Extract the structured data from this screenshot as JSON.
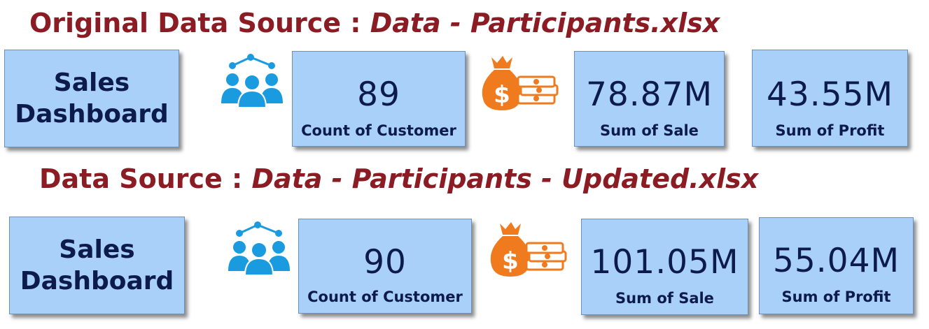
{
  "sections": [
    {
      "heading_label": "Original Data Source :",
      "heading_value": "Data - Participants.xlsx",
      "title_line1": "Sales",
      "title_line2": "Dashboard",
      "customers": {
        "value": "89",
        "label": "Count of Customer"
      },
      "sale": {
        "value": "78.87M",
        "label": "Sum of Sale"
      },
      "profit": {
        "value": "43.55M",
        "label": "Sum of Profit"
      }
    },
    {
      "heading_label": "Data Source :",
      "heading_value": "Data - Participants - Updated.xlsx",
      "title_line1": "Sales",
      "title_line2": "Dashboard",
      "customers": {
        "value": "90",
        "label": "Count of Customer"
      },
      "sale": {
        "value": "101.05M",
        "label": "Sum of Sale"
      },
      "profit": {
        "value": "55.04M",
        "label": "Sum of Profit"
      }
    }
  ],
  "icons": {
    "people": "people-group-icon",
    "money": "money-bag-icon"
  },
  "colors": {
    "heading": "#8b1c24",
    "card_bg": "#a9d0f9",
    "card_text": "#0d1b4c",
    "people_icon": "#1a9be0",
    "money_icon": "#f07b1f"
  }
}
